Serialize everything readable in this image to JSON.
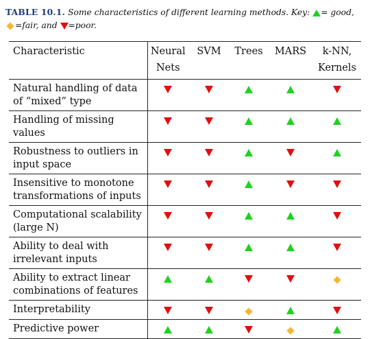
{
  "caption": {
    "label": "TABLE 10.1.",
    "text_a": " Some characteristics of different learning methods. Key: ",
    "good_text": "= good,",
    "fair_text": "=fair, and ",
    "poor_text": "=poor.",
    "key_icons": {
      "good": "green-up-triangle",
      "fair": "orange-diamond",
      "poor": "red-down-triangle"
    }
  },
  "colors": {
    "good": "#1fd21f",
    "fair": "#f5b733",
    "poor": "#e01010",
    "caption_label": "#1e3c7a"
  },
  "headers": [
    "Characteristic",
    "Neural Nets",
    "SVM",
    "Trees",
    "MARS",
    "k-NN, Kernels"
  ],
  "rows": [
    {
      "label": "Natural handling of data of “mixed” type",
      "ratings": [
        "poor",
        "poor",
        "good",
        "good",
        "poor"
      ]
    },
    {
      "label": "Handling of missing values",
      "ratings": [
        "poor",
        "poor",
        "good",
        "good",
        "good"
      ]
    },
    {
      "label": "Robustness to outliers in input space",
      "ratings": [
        "poor",
        "poor",
        "good",
        "poor",
        "good"
      ]
    },
    {
      "label": "Insensitive to monotone transformations of inputs",
      "ratings": [
        "poor",
        "poor",
        "good",
        "poor",
        "poor"
      ]
    },
    {
      "label": "Computational scalability (large N)",
      "ratings": [
        "poor",
        "poor",
        "good",
        "good",
        "poor"
      ]
    },
    {
      "label": "Ability to deal with irrelevant inputs",
      "ratings": [
        "poor",
        "poor",
        "good",
        "good",
        "poor"
      ]
    },
    {
      "label": "Ability to extract linear combinations of features",
      "ratings": [
        "good",
        "good",
        "poor",
        "poor",
        "fair"
      ]
    },
    {
      "label": "Interpretability",
      "ratings": [
        "poor",
        "poor",
        "fair",
        "good",
        "poor"
      ]
    },
    {
      "label": "Predictive power",
      "ratings": [
        "good",
        "good",
        "poor",
        "fair",
        "good"
      ]
    }
  ]
}
